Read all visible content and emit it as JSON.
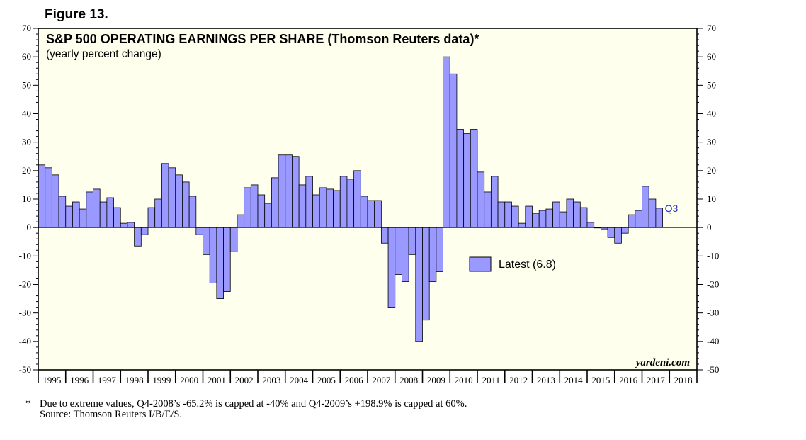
{
  "figure_label": "Figure 13.",
  "chart_data": {
    "type": "bar",
    "title": "S&P 500 OPERATING EARNINGS PER SHARE (Thomson Reuters data)*",
    "subtitle": "(yearly percent change)",
    "frequency": "quarterly",
    "start": "1995 Q1",
    "ylim": [
      -50,
      70
    ],
    "yticks": [
      -50,
      -40,
      -30,
      -20,
      -10,
      0,
      10,
      20,
      30,
      40,
      50,
      60,
      70
    ],
    "xlim_years": [
      1995,
      2018
    ],
    "year_labels": [
      "1995",
      "1996",
      "1997",
      "1998",
      "1999",
      "2000",
      "2001",
      "2002",
      "2003",
      "2004",
      "2005",
      "2006",
      "2007",
      "2008",
      "2009",
      "2010",
      "2011",
      "2012",
      "2013",
      "2014",
      "2015",
      "2016",
      "2017",
      "2018"
    ],
    "values": [
      22,
      21,
      18.5,
      11,
      7.5,
      9,
      6.5,
      12.5,
      13.5,
      9,
      10.5,
      7,
      1.5,
      1.8,
      -6.5,
      -2.5,
      7,
      10,
      22.5,
      21,
      18.5,
      16,
      11,
      -2.5,
      -9.5,
      -19.5,
      -25,
      -22.5,
      -8.5,
      4.5,
      14,
      15,
      11.5,
      8.5,
      17.5,
      25.5,
      25.5,
      25,
      15,
      18,
      11.5,
      14,
      13.5,
      13,
      18,
      17,
      20,
      11,
      9.5,
      9.5,
      -5.5,
      -28,
      -16.5,
      -19,
      -9.5,
      -40,
      -32.5,
      -19,
      -15.5,
      60,
      54,
      34.5,
      33,
      34.5,
      19.5,
      12.5,
      18,
      9,
      9,
      7.5,
      1.5,
      7.5,
      5,
      6,
      6.5,
      9,
      5.5,
      10,
      9,
      7,
      1.8,
      0,
      -0.5,
      -3.5,
      -5.5,
      -2,
      4.5,
      6,
      14.5,
      10,
      6.8
    ],
    "latest_value": 6.8,
    "latest_period": "Q3",
    "legend": "Latest (6.8)",
    "watermark": "yardeni.com",
    "bar_color": "#9999ff",
    "background_color": "#ffffee"
  },
  "footnote": {
    "marker": "*",
    "line1": "Due to extreme values, Q4-2008’s -65.2% is capped at -40% and Q4-2009’s +198.9% is capped at 60%.",
    "line2": "Source: Thomson Reuters I/B/E/S."
  }
}
